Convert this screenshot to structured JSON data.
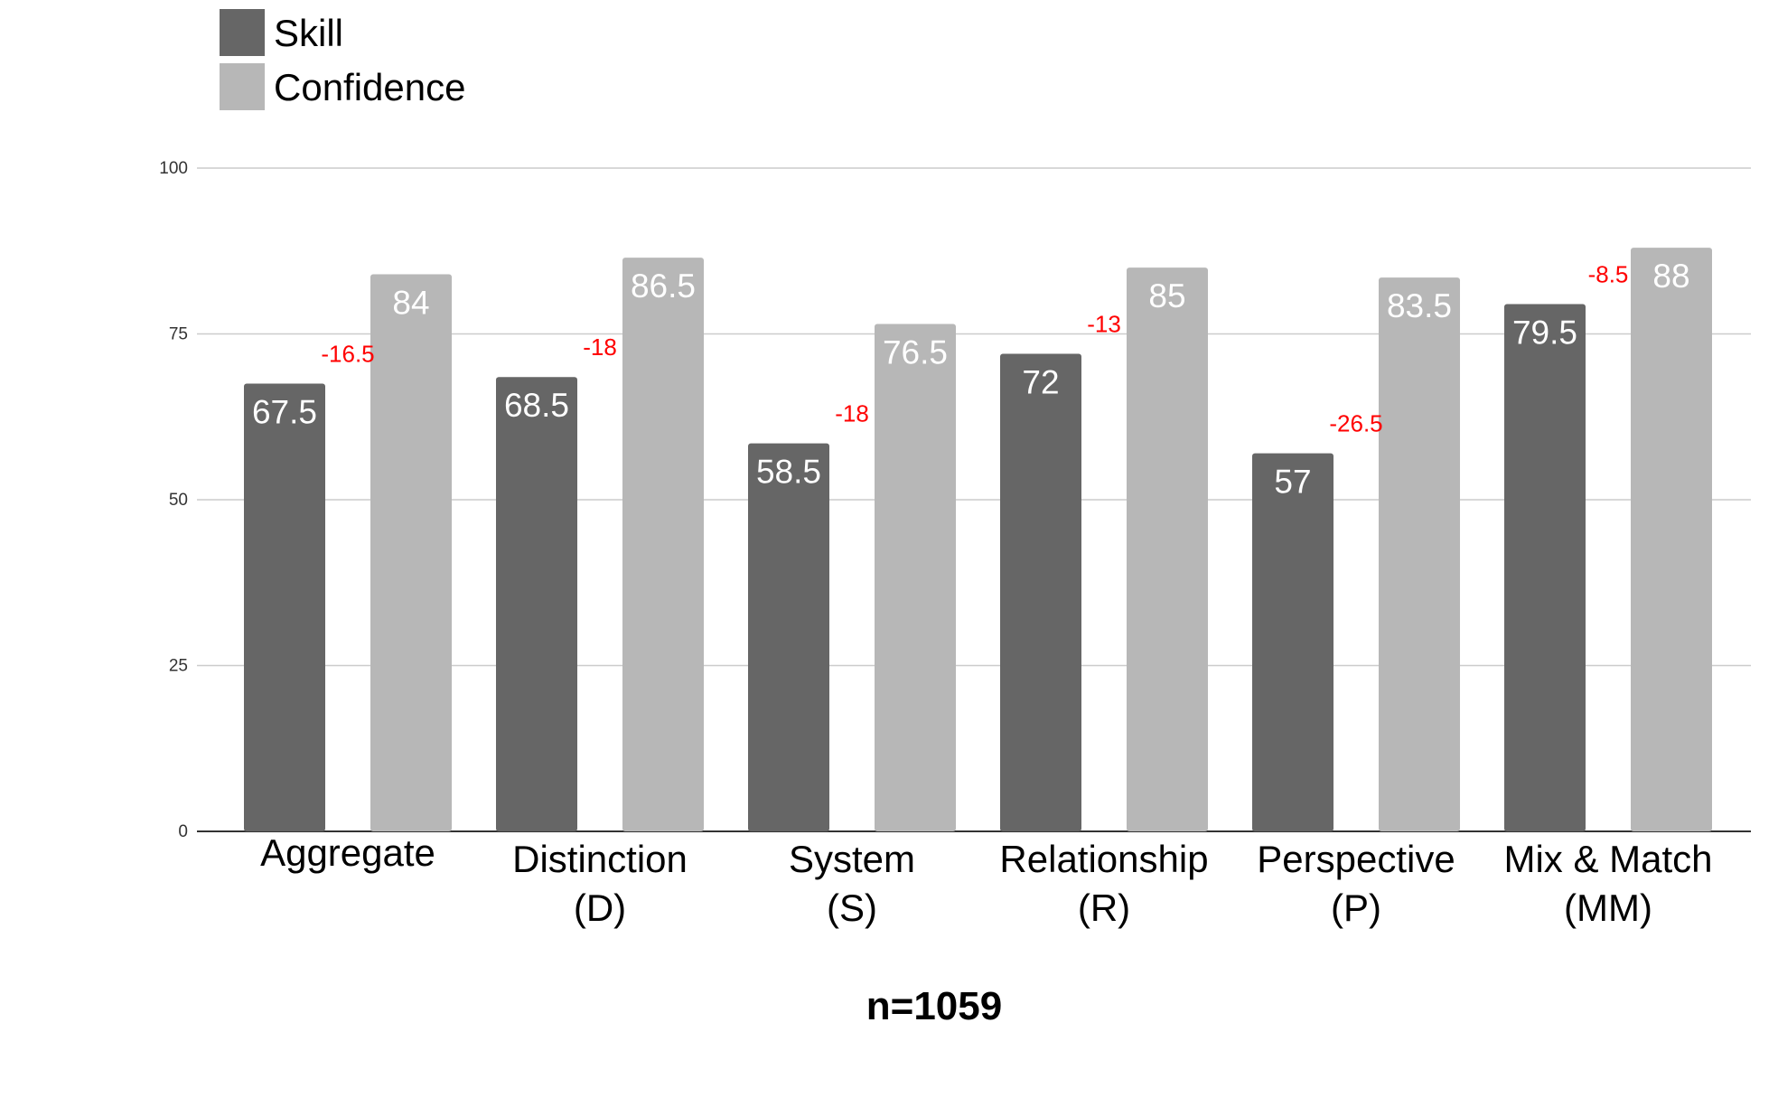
{
  "chart_data": {
    "type": "bar",
    "categories": [
      "Aggregate",
      "Distinction\n(D)",
      "System\n(S)",
      "Relationship\n(R)",
      "Perspective\n(P)",
      "Mix & Match\n(MM)"
    ],
    "series": [
      {
        "name": "Skill",
        "color": "#666666",
        "values": [
          67.5,
          68.5,
          58.5,
          72,
          57,
          79.5
        ]
      },
      {
        "name": "Confidence",
        "color": "#b7b7b7",
        "values": [
          84,
          86.5,
          76.5,
          85,
          83.5,
          88
        ]
      }
    ],
    "value_labels": {
      "Skill": [
        "67.5",
        "68.5",
        "58.5",
        "72",
        "57",
        "79.5"
      ],
      "Confidence": [
        "84",
        "86.5",
        "76.5",
        "85",
        "83.5",
        "88"
      ]
    },
    "difference_labels": [
      "-16.5",
      "-18",
      "-18",
      "-13",
      "-26.5",
      "-8.5"
    ],
    "difference_color": "#ff0000",
    "y_ticks": [
      "0",
      "25",
      "50",
      "75",
      "100"
    ],
    "ylim": [
      0,
      100
    ],
    "grid": true,
    "legend_position": "top-left",
    "title": "",
    "xlabel": "n=1059",
    "ylabel": ""
  }
}
